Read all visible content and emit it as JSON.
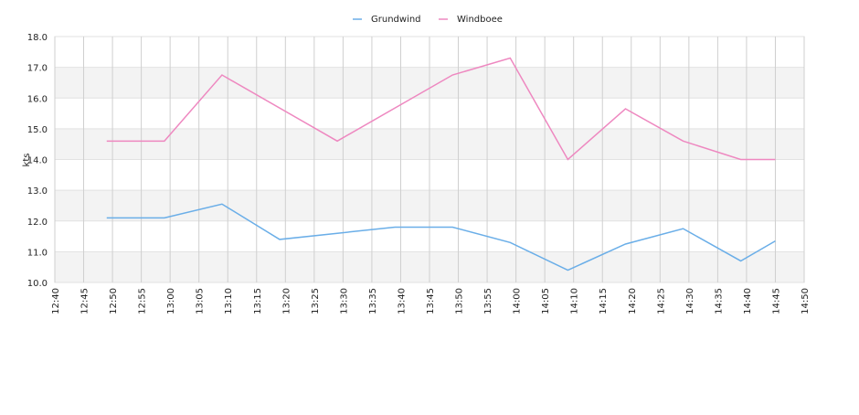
{
  "chart_data": {
    "type": "line",
    "ylabel": "kts",
    "xlim": [
      "12:40",
      "14:50"
    ],
    "xticks": [
      "12:40",
      "12:45",
      "12:50",
      "12:55",
      "13:00",
      "13:05",
      "13:10",
      "13:15",
      "13:20",
      "13:25",
      "13:30",
      "13:35",
      "13:40",
      "13:45",
      "13:50",
      "13:55",
      "14:00",
      "14:05",
      "14:10",
      "14:15",
      "14:20",
      "14:25",
      "14:30",
      "14:35",
      "14:40",
      "14:45",
      "14:50"
    ],
    "ylim": [
      10,
      18
    ],
    "yticks": [
      {
        "value": 10,
        "label": "10.0"
      },
      {
        "value": 11,
        "label": "11.0"
      },
      {
        "value": 12,
        "label": "12.0"
      },
      {
        "value": 13,
        "label": "13.0"
      },
      {
        "value": 14,
        "label": "14.0"
      },
      {
        "value": 15,
        "label": "15.0"
      },
      {
        "value": 16,
        "label": "16.0"
      },
      {
        "value": 17,
        "label": "17.0"
      },
      {
        "value": 18,
        "label": "18.0"
      }
    ],
    "grid": true,
    "legend": "top",
    "series": [
      {
        "name": "Grundwind",
        "color": "#6aaee8",
        "x": [
          "12:49",
          "12:59",
          "13:09",
          "13:19",
          "13:29",
          "13:39",
          "13:49",
          "13:59",
          "14:09",
          "14:19",
          "14:29",
          "14:39",
          "14:45"
        ],
        "values": [
          12.1,
          12.1,
          12.55,
          11.4,
          11.6,
          11.8,
          11.8,
          11.3,
          10.4,
          11.25,
          11.75,
          10.7,
          11.35
        ]
      },
      {
        "name": "Windboee",
        "color": "#ee88c0",
        "x": [
          "12:49",
          "12:59",
          "13:09",
          "13:29",
          "13:49",
          "13:59",
          "14:09",
          "14:19",
          "14:29",
          "14:39",
          "14:45"
        ],
        "values": [
          14.6,
          14.6,
          16.75,
          14.6,
          16.75,
          17.3,
          14.0,
          15.65,
          14.6,
          14.0,
          14.0
        ]
      }
    ]
  }
}
